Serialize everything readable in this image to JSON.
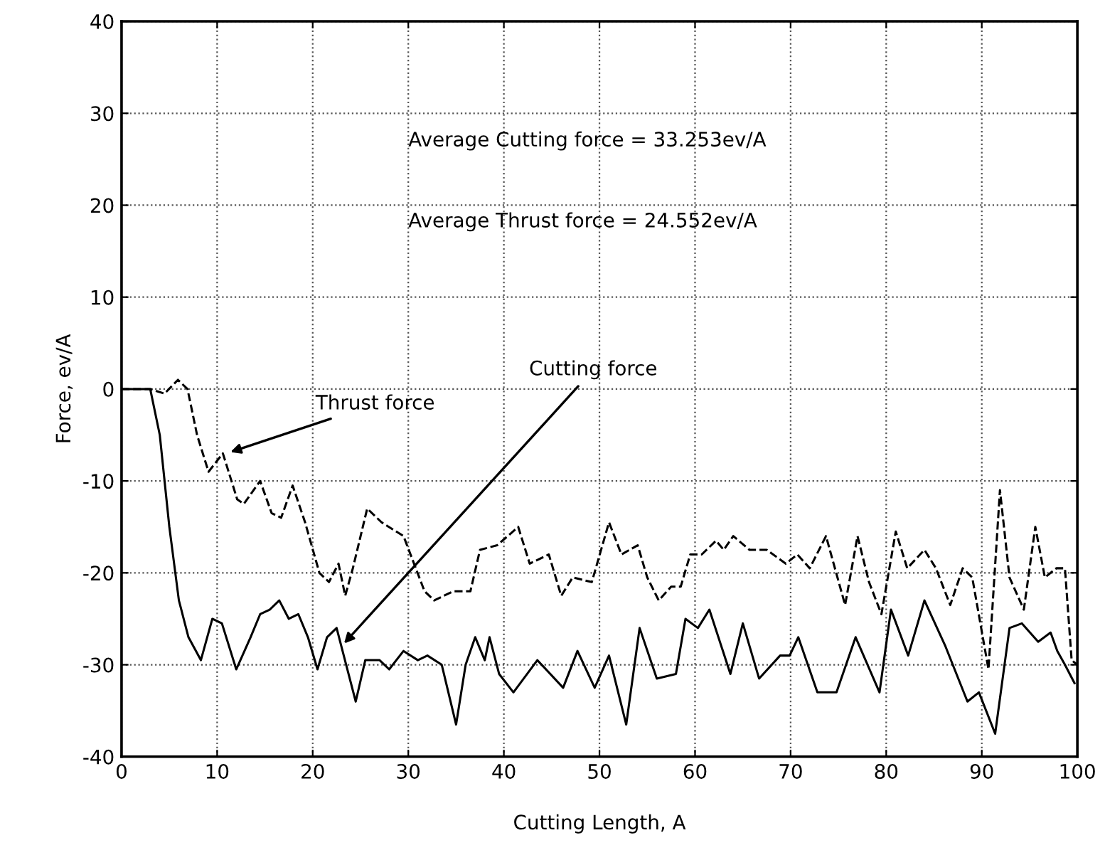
{
  "chart_data": {
    "type": "line",
    "xlabel": "Cutting Length, A",
    "ylabel": "Force, ev/A",
    "xlim": [
      0,
      100
    ],
    "ylim": [
      -40,
      40
    ],
    "xticks": [
      0,
      10,
      20,
      30,
      40,
      50,
      60,
      70,
      80,
      90,
      100
    ],
    "yticks": [
      -40,
      -30,
      -20,
      -10,
      0,
      10,
      20,
      30,
      40
    ],
    "grid": true,
    "series": [
      {
        "color": "#000000",
        "line_style": "solid",
        "x": [
          0,
          3,
          4,
          5,
          6,
          7,
          8.3,
          9.5,
          10.5,
          12,
          13.5,
          14.5,
          15.5,
          16.5,
          17.5,
          18.5,
          19.5,
          20.5,
          21.5,
          22.5,
          23.5,
          24.5,
          25.5,
          27,
          28,
          29.5,
          31,
          32,
          33.5,
          35,
          36,
          37,
          38,
          38.5,
          39.5,
          41,
          43.5,
          46.2,
          47.7,
          49.5,
          51,
          52.8,
          54.2,
          56,
          58,
          59,
          60.3,
          61.5,
          63.7,
          65,
          66.7,
          68.9,
          69.9,
          70.8,
          72.8,
          74.8,
          76.8,
          79.3,
          80.5,
          82.3,
          84,
          86.2,
          88.5,
          89.7,
          91.4,
          92.9,
          94.2,
          95.9,
          97.2,
          97.9,
          98.7,
          99.7
        ],
        "values": [
          0,
          0,
          -5,
          -15,
          -23,
          -27,
          -29.5,
          -25,
          -25.5,
          -30.5,
          -27,
          -24.5,
          -24,
          -23,
          -25,
          -24.5,
          -27,
          -30.5,
          -27,
          -26,
          -30,
          -34,
          -29.5,
          -29.5,
          -30.5,
          -28.5,
          -29.5,
          -29,
          -30,
          -36.5,
          -30,
          -27,
          -29.5,
          -27,
          -31,
          -33,
          -29.5,
          -32.5,
          -28.5,
          -32.5,
          -29,
          -36.5,
          -26,
          -31.5,
          -31,
          -25,
          -26,
          -24,
          -31,
          -25.5,
          -31.5,
          -29,
          -29,
          -27,
          -33,
          -33,
          -27,
          -33,
          -24,
          -29,
          -23,
          -28,
          -34,
          -33,
          -37.5,
          -26,
          -25.5,
          -27.5,
          -26.5,
          -28.5,
          -30,
          -32
        ]
      },
      {
        "color": "#000000",
        "line_style": "dashed",
        "x": [
          0,
          3,
          4.5,
          5.9,
          6.9,
          7.9,
          9.1,
          10.6,
          12.1,
          12.8,
          14.5,
          15.7,
          16.7,
          17.9,
          19.2,
          20.7,
          21.7,
          22.7,
          23.4,
          24.2,
          25.7,
          27.2,
          29.5,
          31.7,
          32.7,
          34.7,
          36.5,
          37.5,
          39.3,
          41.5,
          42.7,
          44.7,
          46,
          47.2,
          49.2,
          51,
          52.3,
          54,
          55,
          56.2,
          57.5,
          58.5,
          59.5,
          60.7,
          62.2,
          63,
          64,
          65.7,
          67.5,
          69.5,
          70.7,
          72,
          73.7,
          75.7,
          77,
          78.2,
          79.5,
          81,
          82.2,
          84,
          85.2,
          86.7,
          88,
          89,
          90.7,
          91.9,
          92.9,
          94.4,
          95.6,
          96.6,
          97.8,
          98.7,
          99.4,
          100
        ],
        "values": [
          0,
          0,
          -0.5,
          1,
          0,
          -5,
          -9,
          -7,
          -12,
          -12.5,
          -10,
          -13.5,
          -14,
          -10.5,
          -14.5,
          -20,
          -21,
          -19,
          -22.5,
          -19.5,
          -13,
          -14.5,
          -16,
          -22,
          -23,
          -22,
          -22,
          -17.5,
          -17,
          -15,
          -19,
          -18,
          -22.5,
          -20.5,
          -21,
          -14.5,
          -18,
          -17,
          -20.5,
          -23,
          -21.5,
          -21.5,
          -18,
          -18,
          -16.5,
          -17.5,
          -16,
          -17.5,
          -17.5,
          -19,
          -18,
          -19.5,
          -16,
          -23.5,
          -16,
          -21,
          -24.5,
          -15.5,
          -19.5,
          -17.5,
          -19.5,
          -23.5,
          -19.5,
          -20.5,
          -30.5,
          -11,
          -20.5,
          -24,
          -15,
          -20.5,
          -19.5,
          -19.5,
          -29.5,
          -30
        ]
      }
    ],
    "annotations": [
      "Average Cutting force = 33.253ev/A",
      "Average Thrust force = 24.552ev/A",
      {
        "text": "Thrust force",
        "x": 11,
        "y": -7
      },
      {
        "text": "Cutting force",
        "x": 23,
        "y": -28
      }
    ]
  }
}
